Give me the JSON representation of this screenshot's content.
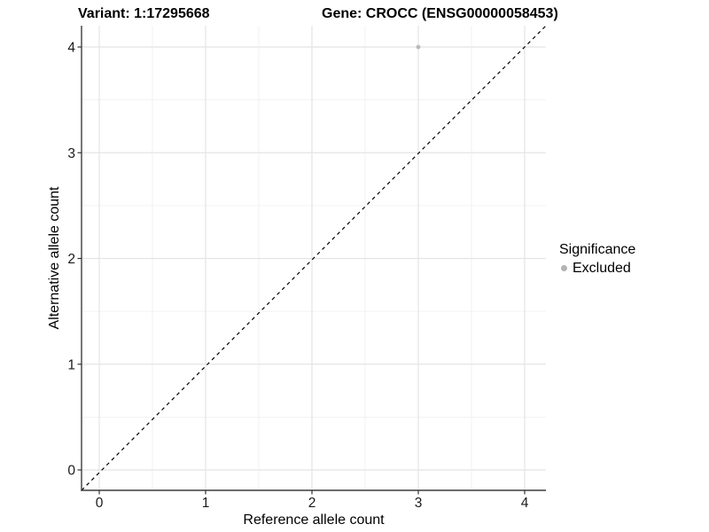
{
  "header": {
    "variant_title": "Variant: 1:17295668",
    "gene_title": "Gene: CROCC (ENSG00000058453)"
  },
  "axes": {
    "x_label": "Reference allele count",
    "y_label": "Alternative allele count",
    "x_tick_labels": [
      "0",
      "1",
      "2",
      "3",
      "4"
    ],
    "y_tick_labels": [
      "0",
      "1",
      "2",
      "3",
      "4"
    ]
  },
  "legend": {
    "title": "Significance",
    "items": [
      {
        "label": "Excluded",
        "color": "#b3b3b3",
        "marker": "circle-icon"
      }
    ]
  },
  "colors": {
    "background": "#ffffff",
    "grid_major": "#e4e4e4",
    "grid_minor": "#efefef",
    "axis_line": "#3c3c3c",
    "tick_mark": "#333333",
    "tick_label": "#1a1a1a",
    "reference_line": "#000000",
    "point": "#b9b9b9"
  },
  "chart_data": {
    "type": "scatter",
    "title_left": "Variant: 1:17295668",
    "title_right": "Gene: CROCC (ENSG00000058453)",
    "xlabel": "Reference allele count",
    "ylabel": "Alternative allele count",
    "x_ticks": [
      0,
      1,
      2,
      3,
      4
    ],
    "y_ticks": [
      0,
      1,
      2,
      3,
      4
    ],
    "xlim": [
      -0.17,
      4.2
    ],
    "ylim": [
      -0.2,
      4.2
    ],
    "grid": "major and minor gridlines, light gray on white",
    "legend_position": "right",
    "series": [
      {
        "name": "Excluded",
        "color": "#b9b9b9",
        "marker": "circle",
        "points": [
          {
            "x": 3,
            "y": 4
          }
        ]
      }
    ],
    "reference_line": {
      "kind": "identity y=x",
      "style": "dashed",
      "color": "#000000"
    }
  }
}
